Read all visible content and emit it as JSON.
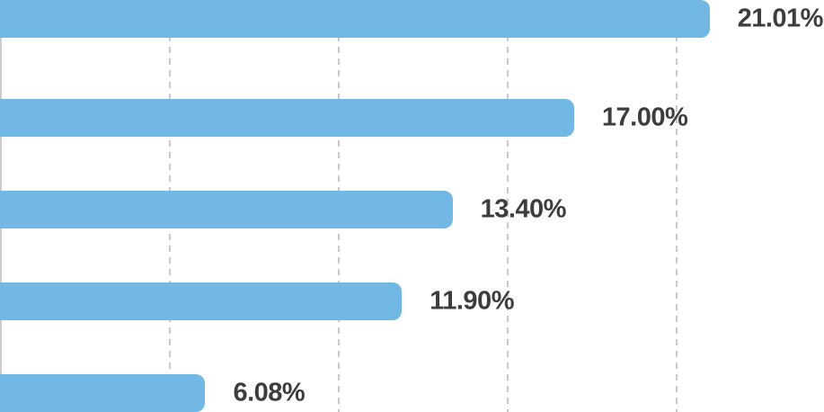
{
  "chart_data": {
    "type": "bar",
    "orientation": "horizontal",
    "values": [
      21.01,
      17.0,
      13.4,
      11.9,
      6.08
    ],
    "data_labels": [
      "21.01%",
      "17.00%",
      "13.40%",
      "11.90%",
      "6.08%"
    ],
    "title": "",
    "xlabel": "",
    "ylabel": "",
    "xlim": [
      0,
      24.4
    ],
    "gridlines_at": [
      5,
      10,
      15,
      20
    ],
    "grid_style": "dashed-vertical",
    "legend": "none",
    "colors": {
      "bar": "#72b8e4",
      "label_text": "#3d3d3d",
      "gridline": "#c9c9c9",
      "axis_line": "#cccccc",
      "background": "#ffffff"
    }
  }
}
